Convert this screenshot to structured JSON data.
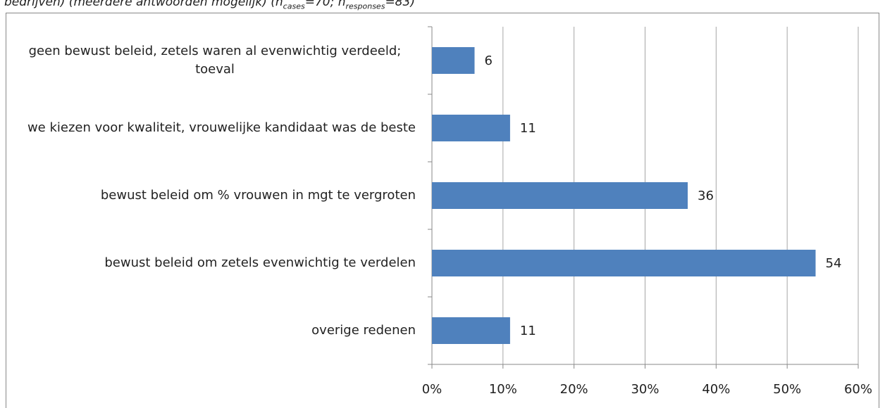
{
  "caption": {
    "text": "bedrijven) (meerdere antwoorden mogelijk) (n",
    "sub1": "cases",
    "mid": "=70; n",
    "sub2": "responses",
    "end": "=83)"
  },
  "chart_data": {
    "type": "bar",
    "orientation": "horizontal",
    "categories": [
      "geen bewust beleid, zetels waren al evenwichtig verdeeld; toeval",
      "we kiezen voor kwaliteit, vrouwelijke kandidaat was de beste",
      "bewust beleid om % vrouwen in mgt te vergroten",
      "bewust beleid om zetels evenwichtig te verdelen",
      "overige redenen"
    ],
    "values": [
      6,
      11,
      36,
      54,
      11
    ],
    "color": "#4f81bd",
    "xlim": [
      0,
      60
    ],
    "xticks": [
      {
        "value": 0,
        "label": "0%"
      },
      {
        "value": 10,
        "label": "10%"
      },
      {
        "value": 20,
        "label": "20%"
      },
      {
        "value": 30,
        "label": "30%"
      },
      {
        "value": 40,
        "label": "40%"
      },
      {
        "value": 50,
        "label": "50%"
      },
      {
        "value": 60,
        "label": "60%"
      }
    ],
    "grid": true
  }
}
